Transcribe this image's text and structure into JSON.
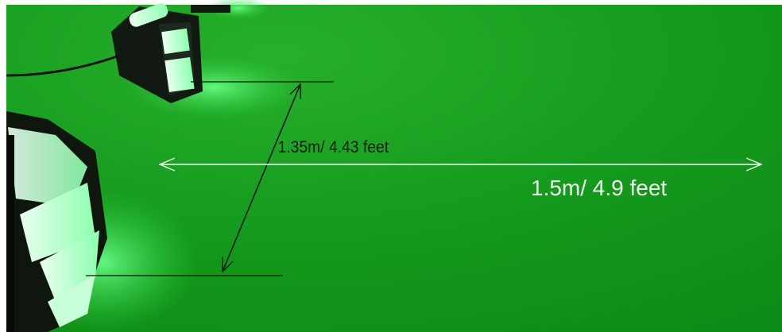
{
  "annotations": {
    "height": "1.35m/ 4.43 feet",
    "width": "1.5m/ 4.9 feet"
  }
}
